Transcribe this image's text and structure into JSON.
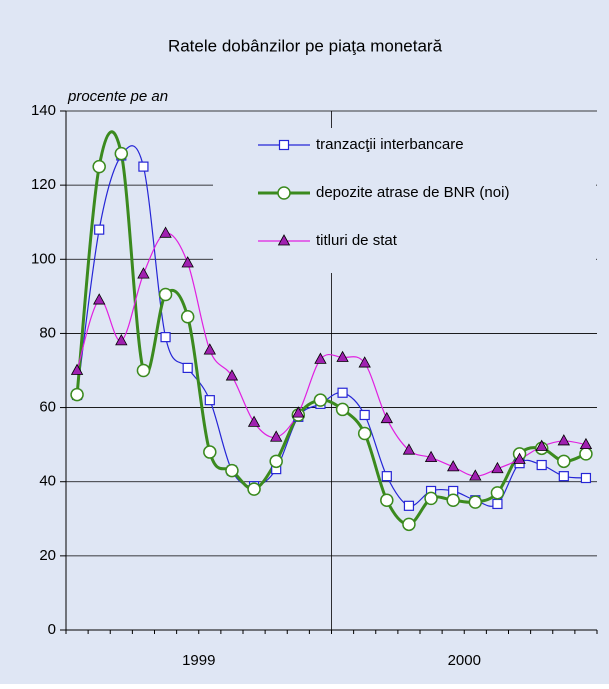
{
  "chart_data": {
    "type": "line",
    "title": "Ratele dobânzilor pe piaţa monetară",
    "y_axis_label": "procente pe an",
    "categories": [
      null,
      null,
      null,
      null,
      null,
      null,
      null,
      null,
      null,
      null,
      null,
      null,
      null,
      null,
      null,
      null,
      null,
      null,
      null,
      null,
      null,
      null,
      null,
      null
    ],
    "year_labels": [
      "1999",
      "2000"
    ],
    "ylim": [
      0,
      140
    ],
    "yticks": [
      0,
      20,
      40,
      60,
      80,
      100,
      120,
      140
    ],
    "grid": true,
    "legend": "upper right",
    "series": [
      {
        "name": "tranzacţii interbancare",
        "color": "#2626d6",
        "marker": "square",
        "values": [
          63.4,
          108,
          128,
          125,
          79,
          70.7,
          62,
          43,
          38.8,
          43.4,
          57.5,
          61,
          64,
          58,
          41.5,
          33.5,
          37.5,
          37.5,
          35,
          34,
          45,
          44.5,
          41.5,
          41
        ]
      },
      {
        "name": "depozite atrase de BNR (noi)",
        "color": "#3b8a1e",
        "marker": "circle",
        "values": [
          63.5,
          125,
          128.5,
          70,
          90.5,
          84.5,
          48,
          43,
          38,
          45.5,
          58,
          62,
          59.5,
          53,
          35,
          28.5,
          35.5,
          35,
          34.5,
          37,
          47.5,
          49,
          45.5,
          47.5
        ]
      },
      {
        "name": "titluri de stat",
        "color": "#e020e0",
        "marker": "triangle",
        "values": [
          70,
          89,
          78,
          96,
          107,
          99,
          75.5,
          68.5,
          56,
          52,
          58.5,
          73,
          73.5,
          72,
          57,
          48.5,
          46.5,
          44,
          41.5,
          43.5,
          46,
          49.5,
          51,
          50
        ]
      }
    ]
  }
}
